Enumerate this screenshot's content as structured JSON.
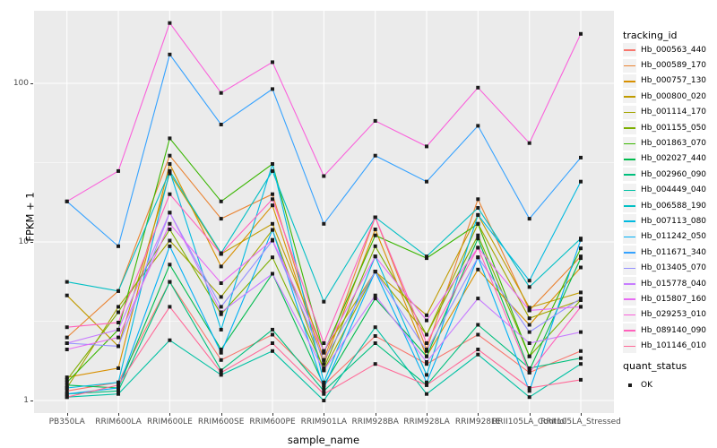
{
  "chart_data": {
    "type": "line",
    "xlabel": "sample_name",
    "ylabel": "FPKM + 1",
    "y_scale": "log10",
    "y_ticks": [
      "1",
      "10",
      "100"
    ],
    "y_minor_breaks": [
      3.1623,
      31.623
    ],
    "ylim": [
      0.75,
      280
    ],
    "legend_title": "tracking_id",
    "legend2_title": "quant_status",
    "legend2_items": [
      {
        "label": "OK",
        "shape": "square",
        "color": "#1a1a1a"
      }
    ],
    "panel_bg": "#EBEBEB",
    "grid_color": "#FFFFFF",
    "point_color": "#1a1a1a",
    "categories": [
      "PB350LA",
      "RRIM600LA",
      "RRIM600LE",
      "RRIM600SE",
      "RRIM600PE",
      "RRIM901LA",
      "RRIM928BA",
      "RRIM928LA",
      "RRIM928LE",
      "RRII105LA_Control",
      "RRII105LA_Stressed"
    ],
    "series": [
      {
        "name": "Hb_000563_440",
        "color": "#F8766D",
        "values": [
          1.15,
          1.3,
          5.6,
          1.8,
          2.6,
          1.25,
          2.55,
          1.7,
          2.6,
          1.5,
          2.05
        ]
      },
      {
        "name": "Hb_000589_170",
        "color": "#EA8331",
        "values": [
          2.5,
          4.9,
          35,
          14,
          20,
          1.8,
          14.3,
          2.1,
          18.6,
          3.7,
          8.1
        ]
      },
      {
        "name": "Hb_000757_130",
        "color": "#D89000",
        "values": [
          1.4,
          1.6,
          31,
          7.0,
          17,
          1.7,
          12,
          1.9,
          6.7,
          3.0,
          6.9
        ]
      },
      {
        "name": "Hb_000800_020",
        "color": "#C09B00",
        "values": [
          4.6,
          2.2,
          27,
          8.4,
          13,
          2.05,
          6.5,
          3.45,
          14.8,
          3.85,
          4.8
        ]
      },
      {
        "name": "Hb_001114_170",
        "color": "#A3A500",
        "values": [
          1.2,
          3.9,
          10.2,
          4.5,
          11.9,
          1.55,
          6.5,
          2.6,
          13,
          3.3,
          4.3
        ]
      },
      {
        "name": "Hb_001155_050",
        "color": "#7CAE00",
        "values": [
          1.35,
          3.6,
          12,
          3.5,
          8.0,
          1.6,
          9.4,
          2.6,
          11,
          1.9,
          4.3
        ]
      },
      {
        "name": "Hb_001863_070",
        "color": "#39B600",
        "values": [
          1.3,
          2.8,
          45,
          18,
          31,
          2.0,
          11,
          7.9,
          13,
          1.9,
          9.1
        ]
      },
      {
        "name": "Hb_002027_440",
        "color": "#00BB4E",
        "values": [
          1.25,
          1.2,
          7.2,
          2.1,
          6.3,
          1.25,
          4.4,
          1.9,
          10.5,
          1.55,
          7.9
        ]
      },
      {
        "name": "Hb_002960_090",
        "color": "#00BF7D",
        "values": [
          1.1,
          1.15,
          5.6,
          1.55,
          2.8,
          1.15,
          2.3,
          1.25,
          3.0,
          1.6,
          1.85
        ]
      },
      {
        "name": "Hb_004449_040",
        "color": "#00C1A3",
        "values": [
          1.05,
          1.1,
          2.4,
          1.45,
          2.05,
          1.0,
          2.9,
          1.1,
          1.95,
          1.05,
          1.7
        ]
      },
      {
        "name": "Hb_006588_190",
        "color": "#00BFC4",
        "values": [
          5.6,
          4.9,
          28,
          8.5,
          28,
          4.2,
          14.3,
          8.1,
          16.4,
          5.2,
          10.5
        ]
      },
      {
        "name": "Hb_007113_080",
        "color": "#00BAE0",
        "values": [
          1.2,
          1.3,
          28,
          2.8,
          31,
          1.3,
          8.1,
          1.45,
          14.8,
          5.7,
          24
        ]
      },
      {
        "name": "Hb_011242_050",
        "color": "#00B0F6",
        "values": [
          1.1,
          1.2,
          9.4,
          2.0,
          11.9,
          1.2,
          6.5,
          1.3,
          8.0,
          1.15,
          10.3
        ]
      },
      {
        "name": "Hb_011671_340",
        "color": "#35A2FF",
        "values": [
          18,
          9.4,
          152,
          55,
          92,
          13,
          35,
          24,
          54,
          14,
          34
        ]
      },
      {
        "name": "Hb_013405_070",
        "color": "#9590FF",
        "values": [
          2.3,
          2.2,
          15.3,
          3.9,
          10.2,
          1.8,
          6.5,
          2.05,
          8.0,
          2.7,
          4.4
        ]
      },
      {
        "name": "Hb_015778_040",
        "color": "#C77CFF",
        "values": [
          2.3,
          2.8,
          15.3,
          3.6,
          6.3,
          1.55,
          4.6,
          1.75,
          4.4,
          2.3,
          2.7
        ]
      },
      {
        "name": "Hb_015807_160",
        "color": "#E76BF3",
        "values": [
          2.1,
          2.5,
          13,
          5.5,
          10.3,
          2.05,
          8.1,
          3.2,
          9.2,
          3.7,
          3.9
        ]
      },
      {
        "name": "Hb_029253_010",
        "color": "#FA62DB",
        "values": [
          18,
          28,
          240,
          87,
          136,
          26,
          58,
          40,
          94,
          42,
          205
        ]
      },
      {
        "name": "Hb_089140_090",
        "color": "#FF62BC",
        "values": [
          2.9,
          3.1,
          20,
          8.4,
          18.6,
          2.3,
          14.3,
          2.3,
          9.2,
          1.5,
          3.9
        ]
      },
      {
        "name": "Hb_101146_010",
        "color": "#FF6A98",
        "values": [
          1.05,
          1.25,
          3.9,
          1.5,
          2.3,
          1.1,
          1.7,
          1.25,
          2.1,
          1.2,
          1.35
        ]
      }
    ]
  }
}
